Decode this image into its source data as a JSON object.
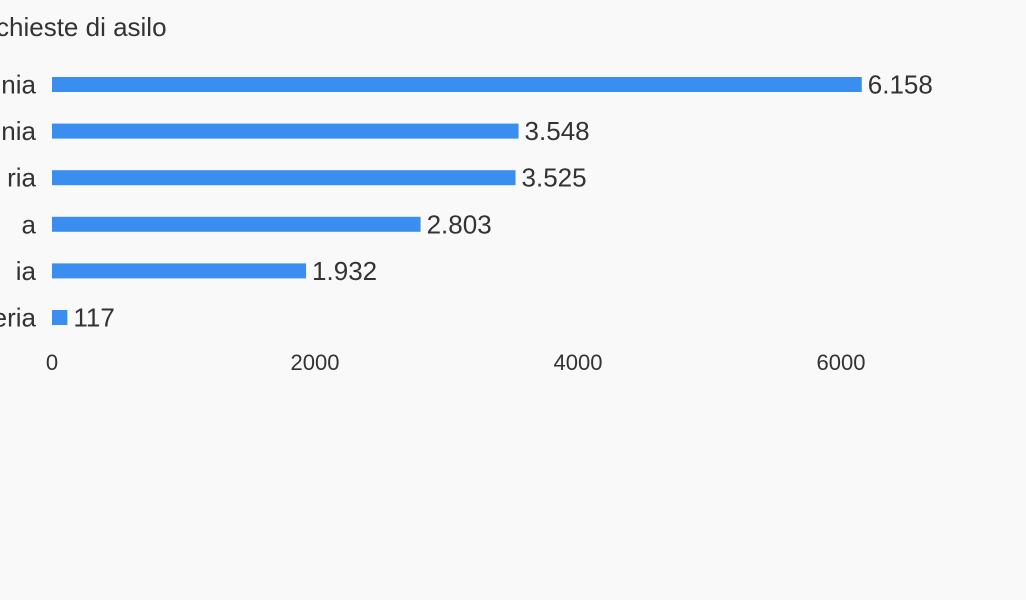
{
  "chart_data": {
    "type": "bar",
    "orientation": "horizontal",
    "title": "chieste di asilo",
    "categories": [
      "nia",
      "nia",
      "ria",
      "a",
      "ia",
      "eria"
    ],
    "values": [
      6158,
      3548,
      3525,
      2803,
      1932,
      117
    ],
    "value_labels": [
      "6.158",
      "3.548",
      "3.525",
      "2.803",
      "1.932",
      "117"
    ],
    "xlim": [
      0,
      7000
    ],
    "x_ticks": [
      0,
      2000,
      4000,
      6000
    ],
    "x_tick_labels": [
      "0",
      "2000",
      "4000",
      "6000"
    ],
    "xlabel": "",
    "ylabel": "",
    "grid": false,
    "bar_color": "#3a8ef0"
  }
}
